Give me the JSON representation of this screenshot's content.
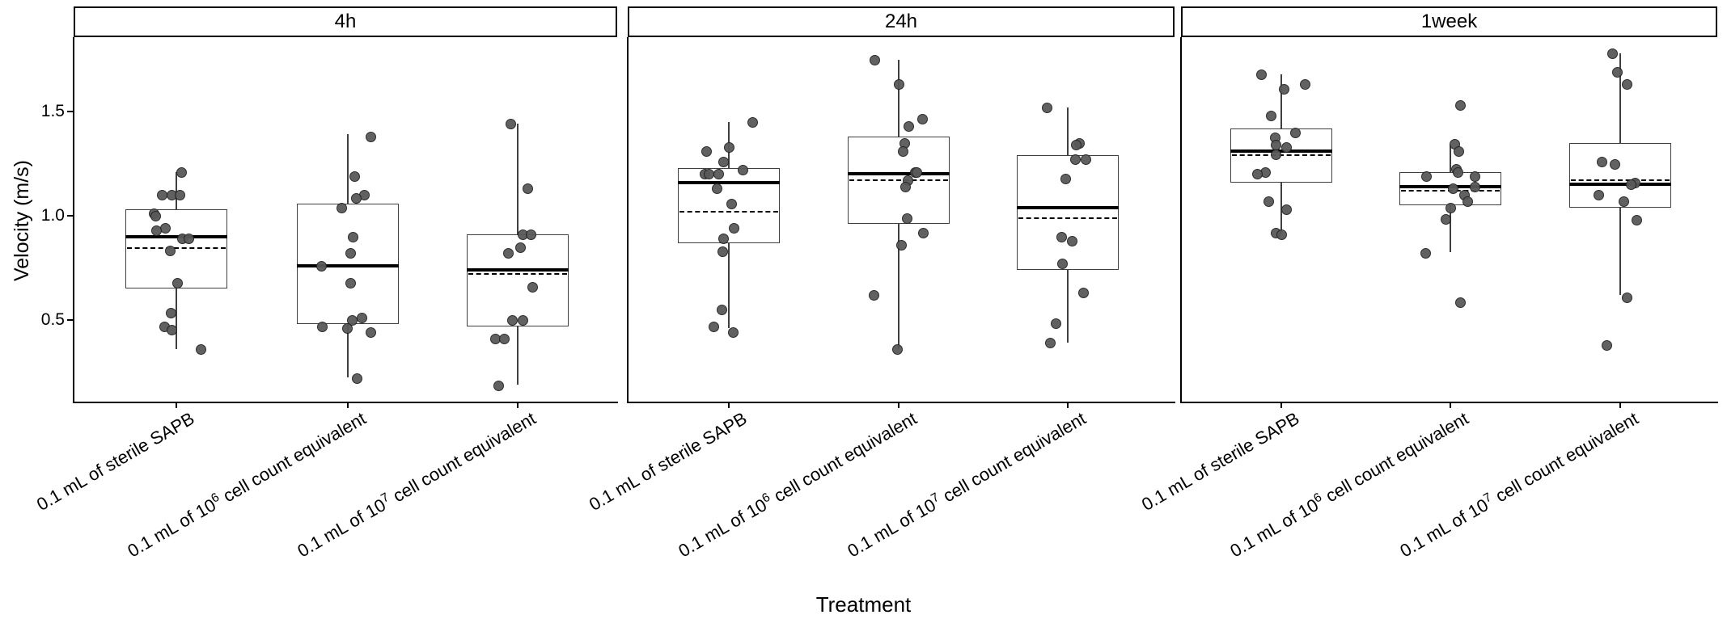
{
  "figure_title": "",
  "axes": {
    "x_title": "Treatment",
    "y_title": "Velocity (m/s)",
    "y_tick_labels": [
      "1.5",
      "1.0",
      "0.5"
    ]
  },
  "colors": {
    "background": "#ffffff",
    "strip_border": "#000000",
    "axis_line": "#000000",
    "box_border": "#3f3f3f",
    "median_line": "#000000",
    "mean_line": "#000000",
    "point_fill": "#595959",
    "point_border": "#222222",
    "text": "#000000"
  },
  "chart_data": {
    "type": "boxplot",
    "title": "",
    "xlabel": "Treatment",
    "ylabel": "Velocity (m/s)",
    "y_ticks": [
      1.5,
      1.0,
      0.5
    ],
    "ylim": [
      0.1,
      1.86
    ],
    "grid": "off",
    "legend": "none",
    "overlay": "jittered points; solid line = median, dashed line = mean",
    "categories": [
      {
        "pre": "0.1 mL of sterile SAPB",
        "sup": "",
        "post": "",
        "text": "0.1 mL of sterile SAPB"
      },
      {
        "pre": "0.1 mL of 10",
        "sup": "6",
        "post": " cell count equivalent",
        "text": "0.1 mL of 10^6 cell count equivalent"
      },
      {
        "pre": "0.1 mL of 10",
        "sup": "7",
        "post": " cell count equivalent",
        "text": "0.1 mL of 10^7 cell count equivalent"
      }
    ],
    "facets": [
      {
        "label": "4h",
        "groups": [
          {
            "category_index": 0,
            "stats": {
              "whisker_low": 0.36,
              "q1": 0.65,
              "median": 0.9,
              "mean": 0.845,
              "q3": 1.03,
              "whisker_high": 1.21
            },
            "points": [
              {
                "v": 1.21,
                "dx": 6
              },
              {
                "v": 1.1,
                "dx": -18
              },
              {
                "v": 1.1,
                "dx": -6
              },
              {
                "v": 1.1,
                "dx": 4
              },
              {
                "v": 1.01,
                "dx": -28
              },
              {
                "v": 1.0,
                "dx": -26
              },
              {
                "v": 0.94,
                "dx": -14
              },
              {
                "v": 0.93,
                "dx": -25
              },
              {
                "v": 0.89,
                "dx": 7
              },
              {
                "v": 0.89,
                "dx": 15
              },
              {
                "v": 0.835,
                "dx": -8
              },
              {
                "v": 0.68,
                "dx": 1
              },
              {
                "v": 0.535,
                "dx": -7
              },
              {
                "v": 0.47,
                "dx": -15
              },
              {
                "v": 0.455,
                "dx": -6
              },
              {
                "v": 0.36,
                "dx": 30
              }
            ]
          },
          {
            "category_index": 1,
            "stats": {
              "whisker_low": 0.225,
              "q1": 0.48,
              "median": 0.76,
              "mean": 0.765,
              "q3": 1.06,
              "whisker_high": 1.39
            },
            "points": [
              {
                "v": 1.38,
                "dx": 28
              },
              {
                "v": 1.19,
                "dx": 8
              },
              {
                "v": 1.1,
                "dx": 20
              },
              {
                "v": 1.085,
                "dx": 10
              },
              {
                "v": 1.04,
                "dx": -8
              },
              {
                "v": 0.9,
                "dx": 6
              },
              {
                "v": 0.82,
                "dx": 3
              },
              {
                "v": 0.76,
                "dx": -33
              },
              {
                "v": 0.68,
                "dx": 3
              },
              {
                "v": 0.51,
                "dx": 17
              },
              {
                "v": 0.5,
                "dx": 5
              },
              {
                "v": 0.47,
                "dx": -32
              },
              {
                "v": 0.46,
                "dx": -1
              },
              {
                "v": 0.44,
                "dx": 28
              },
              {
                "v": 0.22,
                "dx": 11
              }
            ]
          },
          {
            "category_index": 2,
            "stats": {
              "whisker_low": 0.19,
              "q1": 0.47,
              "median": 0.74,
              "mean": 0.72,
              "q3": 0.91,
              "whisker_high": 1.44
            },
            "points": [
              {
                "v": 1.44,
                "dx": -9
              },
              {
                "v": 1.13,
                "dx": 12
              },
              {
                "v": 0.91,
                "dx": 6
              },
              {
                "v": 0.91,
                "dx": 16
              },
              {
                "v": 0.85,
                "dx": 3
              },
              {
                "v": 0.82,
                "dx": -12
              },
              {
                "v": 0.66,
                "dx": 18
              },
              {
                "v": 0.5,
                "dx": -7
              },
              {
                "v": 0.5,
                "dx": 6
              },
              {
                "v": 0.41,
                "dx": -28
              },
              {
                "v": 0.41,
                "dx": -17
              },
              {
                "v": 0.185,
                "dx": -24
              }
            ]
          }
        ]
      },
      {
        "label": "24h",
        "groups": [
          {
            "category_index": 0,
            "stats": {
              "whisker_low": 0.46,
              "q1": 0.87,
              "median": 1.16,
              "mean": 1.02,
              "q3": 1.23,
              "whisker_high": 1.45
            },
            "points": [
              {
                "v": 1.45,
                "dx": 29
              },
              {
                "v": 1.33,
                "dx": 0
              },
              {
                "v": 1.31,
                "dx": -28
              },
              {
                "v": 1.26,
                "dx": -7
              },
              {
                "v": 1.22,
                "dx": 17
              },
              {
                "v": 1.2,
                "dx": -30
              },
              {
                "v": 1.2,
                "dx": -25
              },
              {
                "v": 1.2,
                "dx": -13
              },
              {
                "v": 1.13,
                "dx": -15
              },
              {
                "v": 1.06,
                "dx": 3
              },
              {
                "v": 0.94,
                "dx": 6
              },
              {
                "v": 0.89,
                "dx": -7
              },
              {
                "v": 0.83,
                "dx": -8
              },
              {
                "v": 0.55,
                "dx": -9
              },
              {
                "v": 0.47,
                "dx": -19
              },
              {
                "v": 0.44,
                "dx": 5
              }
            ]
          },
          {
            "category_index": 1,
            "stats": {
              "whisker_low": 0.36,
              "q1": 0.96,
              "median": 1.2,
              "mean": 1.17,
              "q3": 1.38,
              "whisker_high": 1.75
            },
            "points": [
              {
                "v": 1.75,
                "dx": -30
              },
              {
                "v": 1.63,
                "dx": 0
              },
              {
                "v": 1.465,
                "dx": 29
              },
              {
                "v": 1.43,
                "dx": 12
              },
              {
                "v": 1.35,
                "dx": 7
              },
              {
                "v": 1.31,
                "dx": 5
              },
              {
                "v": 1.21,
                "dx": 20
              },
              {
                "v": 1.21,
                "dx": 22
              },
              {
                "v": 1.17,
                "dx": 11
              },
              {
                "v": 1.14,
                "dx": 8
              },
              {
                "v": 0.99,
                "dx": 10
              },
              {
                "v": 0.92,
                "dx": 30
              },
              {
                "v": 0.86,
                "dx": 3
              },
              {
                "v": 0.62,
                "dx": -31
              },
              {
                "v": 0.36,
                "dx": -2
              }
            ]
          },
          {
            "category_index": 2,
            "stats": {
              "whisker_low": 0.39,
              "q1": 0.74,
              "median": 1.04,
              "mean": 0.99,
              "q3": 1.29,
              "whisker_high": 1.52
            },
            "points": [
              {
                "v": 1.52,
                "dx": -26
              },
              {
                "v": 1.35,
                "dx": 14
              },
              {
                "v": 1.34,
                "dx": 10
              },
              {
                "v": 1.27,
                "dx": 9
              },
              {
                "v": 1.27,
                "dx": 22
              },
              {
                "v": 1.18,
                "dx": -3
              },
              {
                "v": 0.9,
                "dx": -8
              },
              {
                "v": 0.88,
                "dx": 5
              },
              {
                "v": 0.77,
                "dx": -7
              },
              {
                "v": 0.63,
                "dx": 19
              },
              {
                "v": 0.485,
                "dx": -15
              },
              {
                "v": 0.39,
                "dx": -22
              }
            ]
          }
        ]
      },
      {
        "label": "1week",
        "groups": [
          {
            "category_index": 0,
            "stats": {
              "whisker_low": 0.915,
              "q1": 1.16,
              "median": 1.31,
              "mean": 1.29,
              "q3": 1.42,
              "whisker_high": 1.68
            },
            "points": [
              {
                "v": 1.68,
                "dx": -25
              },
              {
                "v": 1.63,
                "dx": 29
              },
              {
                "v": 1.61,
                "dx": 3
              },
              {
                "v": 1.48,
                "dx": -13
              },
              {
                "v": 1.4,
                "dx": 17
              },
              {
                "v": 1.375,
                "dx": -8
              },
              {
                "v": 1.34,
                "dx": -7
              },
              {
                "v": 1.33,
                "dx": 6
              },
              {
                "v": 1.295,
                "dx": -7
              },
              {
                "v": 1.21,
                "dx": -20
              },
              {
                "v": 1.2,
                "dx": -30
              },
              {
                "v": 1.07,
                "dx": -16
              },
              {
                "v": 1.03,
                "dx": 6
              },
              {
                "v": 0.92,
                "dx": -7
              },
              {
                "v": 0.91,
                "dx": 0
              }
            ]
          },
          {
            "category_index": 1,
            "stats": {
              "whisker_low": 0.825,
              "q1": 1.05,
              "median": 1.14,
              "mean": 1.12,
              "q3": 1.21,
              "whisker_high": 1.34
            },
            "points": [
              {
                "v": 1.53,
                "dx": 12
              },
              {
                "v": 1.345,
                "dx": 5
              },
              {
                "v": 1.31,
                "dx": 10
              },
              {
                "v": 1.225,
                "dx": 7
              },
              {
                "v": 1.21,
                "dx": 9
              },
              {
                "v": 1.19,
                "dx": -30
              },
              {
                "v": 1.19,
                "dx": 30
              },
              {
                "v": 1.14,
                "dx": 30
              },
              {
                "v": 1.13,
                "dx": 3
              },
              {
                "v": 1.1,
                "dx": 17
              },
              {
                "v": 1.07,
                "dx": 21
              },
              {
                "v": 1.04,
                "dx": 0
              },
              {
                "v": 0.985,
                "dx": -6
              },
              {
                "v": 0.82,
                "dx": -31
              },
              {
                "v": 0.585,
                "dx": 12
              }
            ]
          },
          {
            "category_index": 2,
            "stats": {
              "whisker_low": 0.62,
              "q1": 1.04,
              "median": 1.15,
              "mean": 1.17,
              "q3": 1.35,
              "whisker_high": 1.78
            },
            "points": [
              {
                "v": 1.78,
                "dx": -10
              },
              {
                "v": 1.69,
                "dx": -4
              },
              {
                "v": 1.63,
                "dx": 8
              },
              {
                "v": 1.26,
                "dx": -23
              },
              {
                "v": 1.25,
                "dx": -7
              },
              {
                "v": 1.16,
                "dx": 18
              },
              {
                "v": 1.15,
                "dx": 13
              },
              {
                "v": 1.1,
                "dx": -27
              },
              {
                "v": 1.07,
                "dx": 4
              },
              {
                "v": 0.98,
                "dx": 20
              },
              {
                "v": 0.61,
                "dx": 8
              },
              {
                "v": 0.38,
                "dx": -17
              }
            ]
          }
        ]
      }
    ]
  }
}
